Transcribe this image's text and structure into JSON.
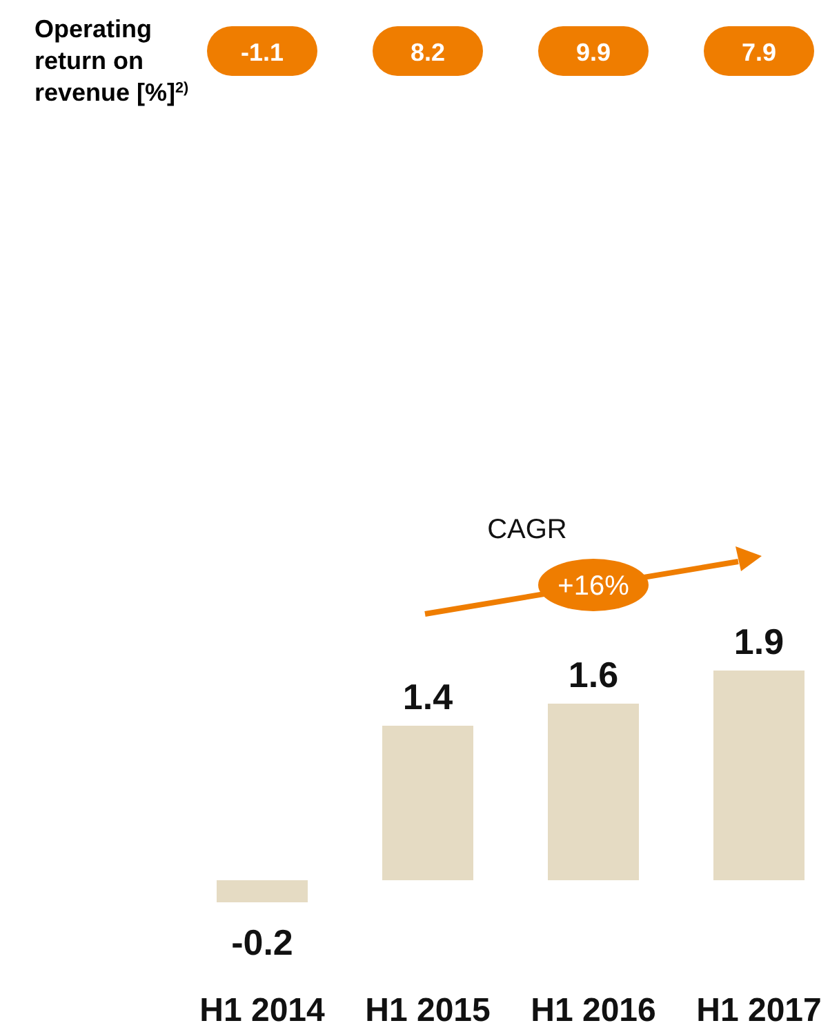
{
  "chart_data": {
    "type": "bar",
    "categories": [
      "H1 2014",
      "H1 2015",
      "H1 2016",
      "H1 2017"
    ],
    "values": [
      -0.2,
      1.4,
      1.6,
      1.9
    ],
    "color": "#e5dbc3",
    "data_labels": true,
    "annotations": [
      "Operating return on revenue [%]$^{2)}$",
      "-1.1",
      "8.2",
      "9.9",
      "7.9",
      "CAGR",
      "+16%"
    ]
  }
}
